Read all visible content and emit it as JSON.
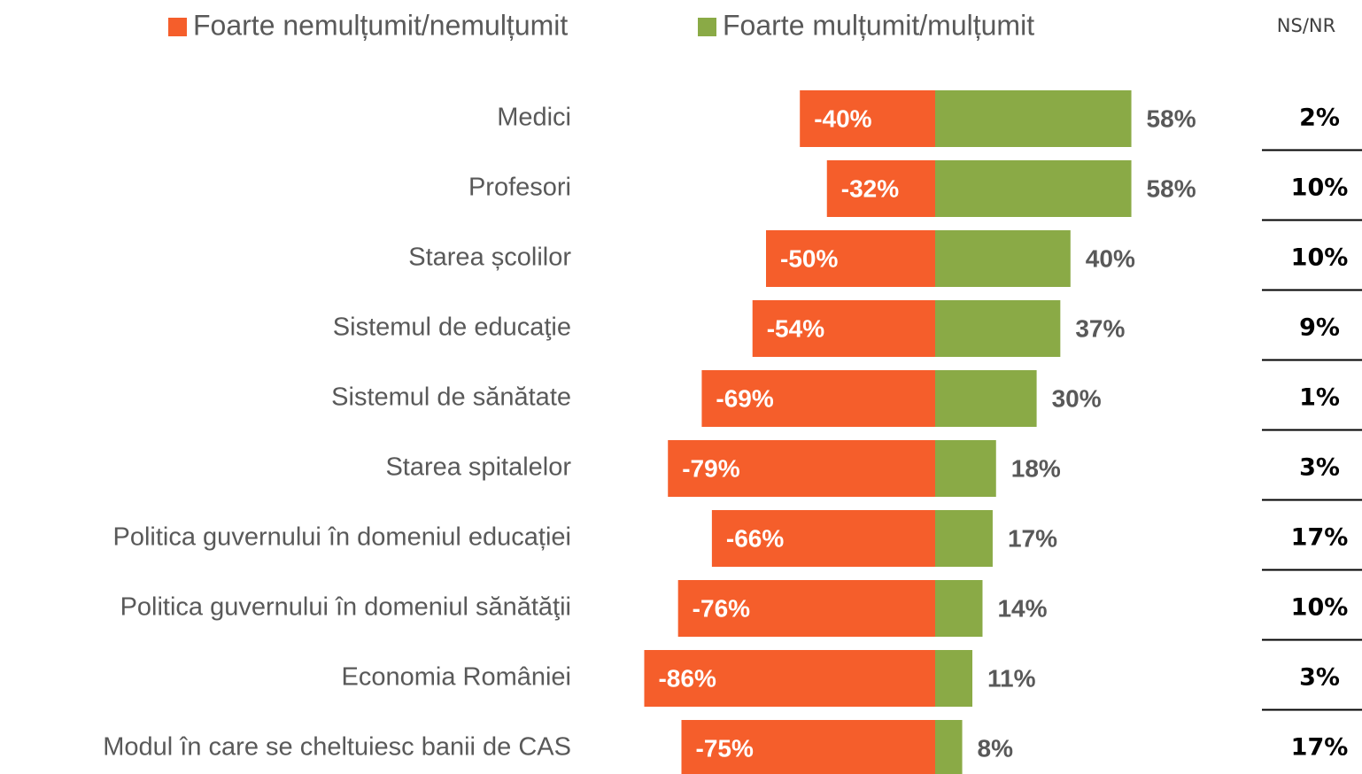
{
  "chart_data": {
    "type": "diverging_bar",
    "categories": [
      "Medici",
      "Profesori",
      "Starea școlilor",
      "Sistemul de educaţie",
      "Sistemul de sănătate",
      "Starea spitalelor",
      "Politica guvernului în domeniul educației",
      "Politica guvernului în domeniul sănătăţii",
      "Economia României",
      "Modul în care se cheltuiesc banii de CAS"
    ],
    "series": [
      {
        "name": "Foarte nemulțumit/nemulțumit",
        "color": "#f55e2b",
        "values": [
          -40,
          -32,
          -50,
          -54,
          -69,
          -79,
          -66,
          -76,
          -86,
          -75
        ],
        "value_labels": [
          "-40%",
          "-32%",
          "-50%",
          "-54%",
          "-69%",
          "-79%",
          "-66%",
          "-76%",
          "-86%",
          "-75%"
        ]
      },
      {
        "name": "Foarte mulțumit/mulțumit",
        "color": "#8aaa46",
        "values": [
          58,
          58,
          40,
          37,
          30,
          18,
          17,
          14,
          11,
          8
        ],
        "value_labels": [
          "58%",
          "58%",
          "40%",
          "37%",
          "30%",
          "18%",
          "17%",
          "14%",
          "11%",
          "8%"
        ]
      }
    ],
    "ns_nr": {
      "title": "NS/NR",
      "values": [
        2,
        10,
        10,
        9,
        1,
        3,
        17,
        10,
        3,
        17
      ],
      "value_labels": [
        "2%",
        "10%",
        "10%",
        "9%",
        "1%",
        "3%",
        "17%",
        "10%",
        "3%",
        "17%"
      ]
    }
  }
}
